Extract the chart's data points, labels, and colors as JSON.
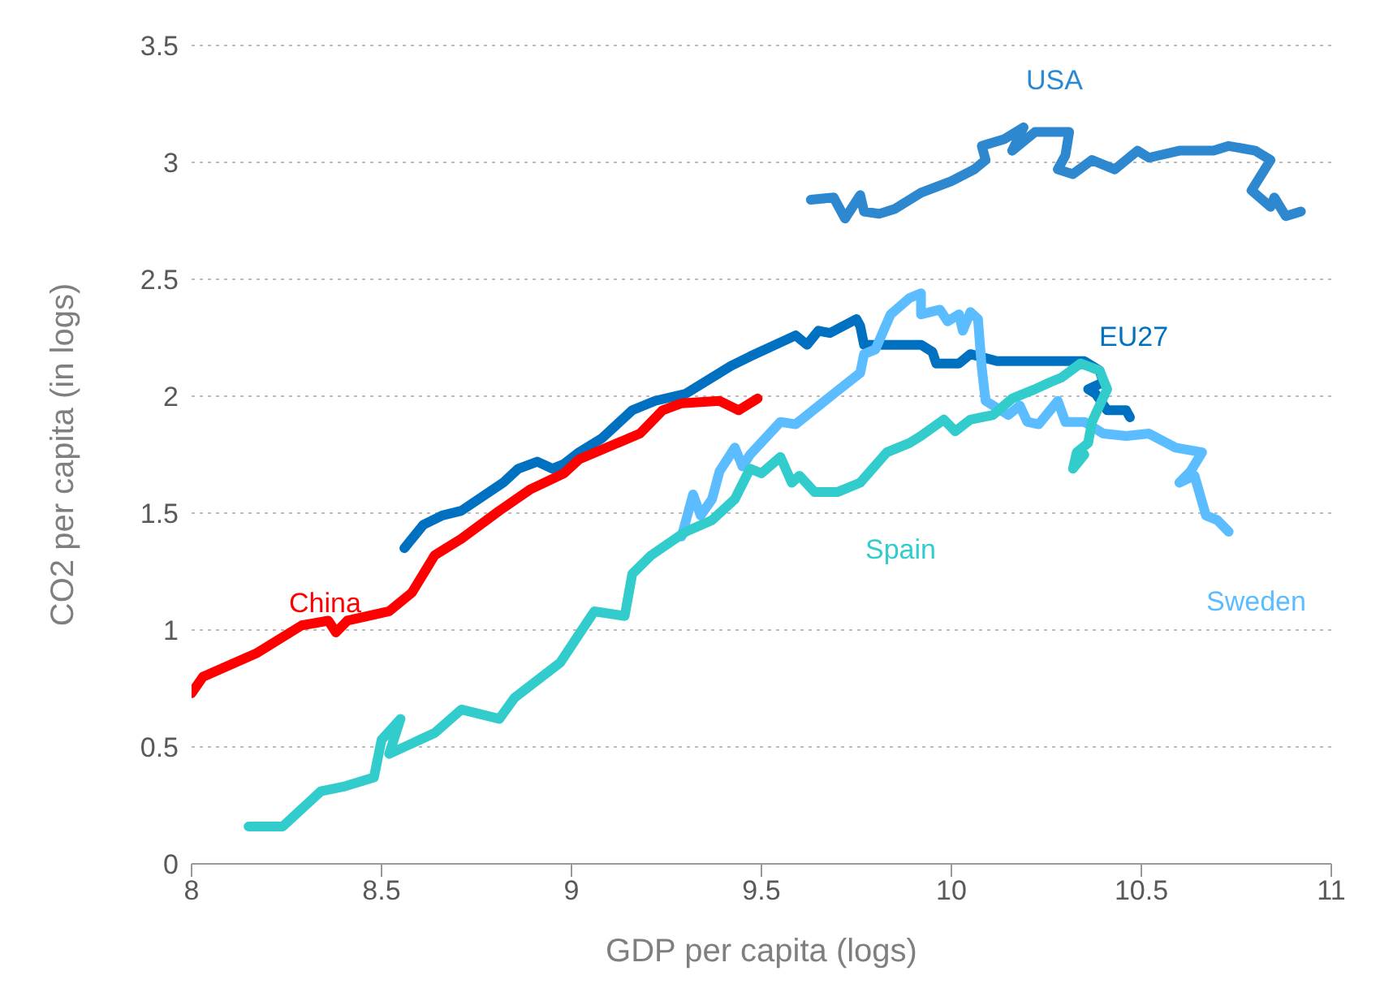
{
  "chart_data": {
    "type": "line",
    "xlabel": "GDP per capita (logs)",
    "ylabel": "CO2 per capita (in logs)",
    "xlim": [
      8,
      11
    ],
    "xticks": [
      8,
      8.5,
      9,
      9.5,
      10,
      10.5,
      11
    ],
    "ylim": [
      0,
      3.5
    ],
    "yticks": [
      0,
      0.5,
      1,
      1.5,
      2,
      2.5,
      3,
      3.5
    ],
    "grid": "y",
    "marker": "none",
    "line_style": "solid",
    "series": [
      {
        "name": "USA",
        "color": "#2e88cf",
        "x": [
          9.63,
          9.69,
          9.72,
          9.76,
          9.77,
          9.81,
          9.85,
          9.92,
          10.0,
          10.06,
          10.09,
          10.08,
          10.14,
          10.19,
          10.16,
          10.22,
          10.31,
          10.3,
          10.28,
          10.32,
          10.37,
          10.43,
          10.49,
          10.52,
          10.6,
          10.69,
          10.73,
          10.8,
          10.84,
          10.79,
          10.84,
          10.85,
          10.88,
          10.92
        ],
        "values": [
          2.84,
          2.85,
          2.76,
          2.86,
          2.79,
          2.78,
          2.8,
          2.87,
          2.92,
          2.97,
          3.01,
          3.07,
          3.1,
          3.15,
          3.05,
          3.13,
          3.13,
          3.03,
          2.97,
          2.95,
          3.01,
          2.97,
          3.05,
          3.02,
          3.05,
          3.05,
          3.07,
          3.05,
          3.01,
          2.88,
          2.81,
          2.85,
          2.77,
          2.79
        ]
      },
      {
        "name": "EU27",
        "color": "#0070c0",
        "x": [
          8.56,
          8.61,
          8.66,
          8.71,
          8.82,
          8.86,
          8.91,
          8.95,
          8.98,
          9.02,
          9.08,
          9.16,
          9.22,
          9.3,
          9.42,
          9.47,
          9.59,
          9.62,
          9.65,
          9.68,
          9.75,
          9.76,
          9.77,
          9.86,
          9.92,
          9.95,
          9.96,
          10.02,
          10.05,
          10.12,
          10.23,
          10.35,
          10.39,
          10.4,
          10.36,
          10.38,
          10.41,
          10.46,
          10.47
        ],
        "values": [
          1.35,
          1.45,
          1.49,
          1.51,
          1.63,
          1.69,
          1.72,
          1.69,
          1.71,
          1.76,
          1.82,
          1.94,
          1.98,
          2.01,
          2.13,
          2.17,
          2.26,
          2.22,
          2.28,
          2.27,
          2.33,
          2.3,
          2.22,
          2.22,
          2.22,
          2.19,
          2.14,
          2.14,
          2.18,
          2.15,
          2.15,
          2.15,
          2.11,
          2.06,
          2.03,
          2.01,
          1.94,
          1.94,
          1.91
        ]
      },
      {
        "name": "Sweden",
        "color": "#5bbdff",
        "x": [
          9.29,
          9.32,
          9.34,
          9.37,
          9.39,
          9.43,
          9.45,
          9.47,
          9.55,
          9.59,
          9.69,
          9.76,
          9.77,
          9.8,
          9.84,
          9.89,
          9.92,
          9.92,
          9.97,
          9.99,
          10.02,
          10.03,
          10.05,
          10.07,
          10.08,
          10.09,
          10.15,
          10.18,
          10.2,
          10.23,
          10.28,
          10.3,
          10.35,
          10.4,
          10.46,
          10.52,
          10.59,
          10.66,
          10.63,
          10.6,
          10.64,
          10.67,
          10.7,
          10.73
        ],
        "values": [
          1.4,
          1.58,
          1.49,
          1.56,
          1.68,
          1.78,
          1.7,
          1.75,
          1.89,
          1.88,
          2.01,
          2.1,
          2.18,
          2.2,
          2.35,
          2.42,
          2.44,
          2.35,
          2.37,
          2.32,
          2.35,
          2.28,
          2.36,
          2.33,
          2.12,
          1.98,
          1.92,
          1.96,
          1.89,
          1.88,
          1.98,
          1.89,
          1.89,
          1.84,
          1.83,
          1.84,
          1.78,
          1.76,
          1.68,
          1.63,
          1.66,
          1.49,
          1.47,
          1.42
        ]
      },
      {
        "name": "Spain",
        "color": "#33cccc",
        "x": [
          8.15,
          8.24,
          8.32,
          8.34,
          8.4,
          8.48,
          8.5,
          8.55,
          8.52,
          8.64,
          8.71,
          8.81,
          8.85,
          8.97,
          9.06,
          9.14,
          9.16,
          9.21,
          9.3,
          9.37,
          9.43,
          9.47,
          9.5,
          9.55,
          9.58,
          9.6,
          9.64,
          9.7,
          9.76,
          9.83,
          9.89,
          9.92,
          9.98,
          10.01,
          10.05,
          10.11,
          10.16,
          10.22,
          10.26,
          10.29,
          10.34,
          10.39,
          10.41,
          10.37,
          10.36,
          10.33,
          10.32,
          10.35
        ],
        "values": [
          0.16,
          0.16,
          0.28,
          0.31,
          0.33,
          0.37,
          0.53,
          0.62,
          0.47,
          0.56,
          0.66,
          0.62,
          0.71,
          0.86,
          1.08,
          1.06,
          1.24,
          1.32,
          1.42,
          1.47,
          1.56,
          1.69,
          1.67,
          1.74,
          1.63,
          1.66,
          1.59,
          1.59,
          1.63,
          1.76,
          1.8,
          1.83,
          1.9,
          1.85,
          1.9,
          1.92,
          1.99,
          2.03,
          2.06,
          2.08,
          2.14,
          2.11,
          2.03,
          1.89,
          1.8,
          1.76,
          1.69,
          1.75
        ]
      },
      {
        "name": "China",
        "color": "#ff0000",
        "x": [
          8.0,
          8.03,
          8.17,
          8.29,
          8.36,
          8.38,
          8.41,
          8.52,
          8.58,
          8.64,
          8.71,
          8.81,
          8.89,
          8.98,
          9.02,
          9.18,
          9.24,
          9.29,
          9.39,
          9.44,
          9.49
        ],
        "values": [
          0.73,
          0.8,
          0.9,
          1.02,
          1.04,
          0.99,
          1.04,
          1.08,
          1.16,
          1.32,
          1.39,
          1.51,
          1.6,
          1.67,
          1.73,
          1.84,
          1.94,
          1.97,
          1.98,
          1.94,
          1.99
        ]
      }
    ]
  }
}
